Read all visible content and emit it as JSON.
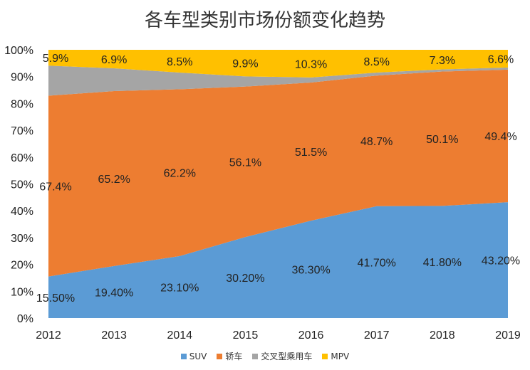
{
  "chart_data": {
    "type": "area",
    "stacked": "percent",
    "title": "各车型类别市场份额变化趋势",
    "x": [
      "2012",
      "2013",
      "2014",
      "2015",
      "2016",
      "2017",
      "2018",
      "2019"
    ],
    "y_ticks": [
      "0%",
      "10%",
      "20%",
      "30%",
      "40%",
      "50%",
      "60%",
      "70%",
      "80%",
      "90%",
      "100%"
    ],
    "ylim": [
      0,
      100
    ],
    "legend_position": "bottom",
    "series": [
      {
        "name": "SUV",
        "color": "#5b9bd5",
        "values": [
          15.5,
          19.4,
          23.1,
          30.2,
          36.3,
          41.7,
          41.8,
          43.2
        ],
        "labels": [
          "15.50%",
          "19.40%",
          "23.10%",
          "30.20%",
          "36.30%",
          "41.70%",
          "41.80%",
          "43.20%"
        ]
      },
      {
        "name": "轿车",
        "color": "#ed7d31",
        "values": [
          67.4,
          65.2,
          62.2,
          56.1,
          51.5,
          48.7,
          50.1,
          49.4
        ],
        "labels": [
          "67.4%",
          "65.2%",
          "62.2%",
          "56.1%",
          "51.5%",
          "48.7%",
          "50.1%",
          "49.4%"
        ]
      },
      {
        "name": "交叉型乘用车",
        "color": "#a5a5a5",
        "values": [
          11.2,
          8.5,
          6.2,
          3.8,
          1.9,
          1.1,
          0.8,
          0.8
        ],
        "labels": []
      },
      {
        "name": "MPV",
        "color": "#ffc000",
        "values": [
          5.9,
          6.9,
          8.5,
          9.9,
          10.3,
          8.5,
          7.3,
          6.6
        ],
        "labels": [
          "5.9%",
          "6.9%",
          "8.5%",
          "9.9%",
          "10.3%",
          "8.5%",
          "7.3%",
          "6.6%"
        ]
      }
    ]
  }
}
